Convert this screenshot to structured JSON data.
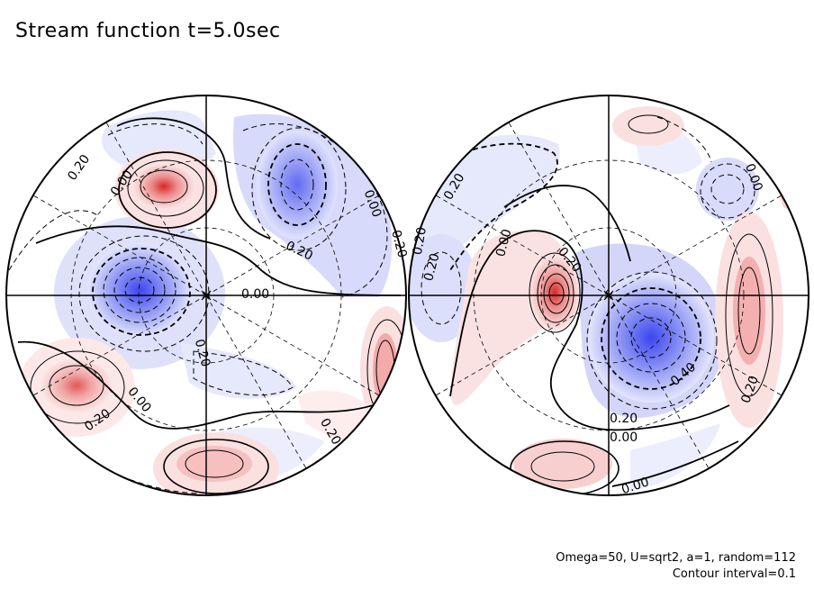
{
  "title": "Stream function t=5.0sec",
  "params": {
    "line1": "Omega=50, U=sqrt2, a=1, random=112",
    "line2": "Contour interval=0.1"
  },
  "colors": {
    "negative": "#4a55f0",
    "positive": "#e05050",
    "contour": "#000000"
  },
  "left_labels": [
    "0.20",
    "0.00",
    "0.00",
    "0.20",
    "0.20",
    "0.00",
    "0.20",
    "0.00",
    "0.20",
    "0.20"
  ],
  "right_labels": [
    "0.00",
    "0.20",
    "0.20",
    "0.20",
    "0.00",
    "0.20",
    "0.40",
    "0.20",
    "0.20",
    "0.00",
    "0.00"
  ]
}
